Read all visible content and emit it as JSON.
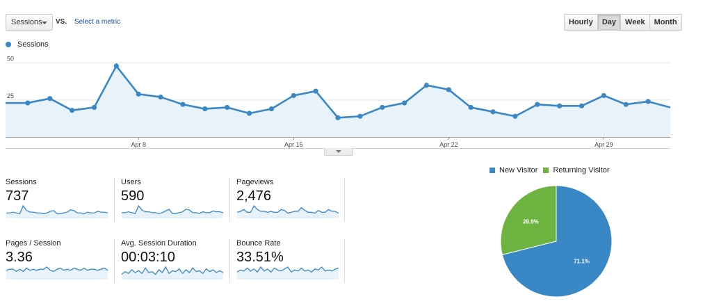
{
  "toolbar": {
    "metric_select": "Sessions",
    "vs_label": "VS.",
    "select_metric_link": "Select a metric",
    "granularity": [
      "Hourly",
      "Day",
      "Week",
      "Month"
    ],
    "active_granularity": "Day"
  },
  "chart_data": [
    {
      "type": "line",
      "title": "",
      "series": [
        {
          "name": "Sessions",
          "color": "#3a87c6",
          "values": [
            23,
            23,
            26,
            18,
            20,
            48,
            29,
            27,
            22,
            19,
            20,
            16,
            19,
            28,
            31,
            13,
            14,
            20,
            23,
            35,
            32,
            20,
            17,
            14,
            22,
            21,
            21,
            28,
            22,
            24,
            20
          ]
        }
      ],
      "x_ticks": [
        "Apr 8",
        "Apr 15",
        "Apr 22",
        "Apr 29"
      ],
      "y_ticks": [
        25,
        50
      ],
      "ylim": [
        0,
        55
      ],
      "fill": "area",
      "grid": "horizontal"
    },
    {
      "type": "pie",
      "labels": [
        "New Visitor",
        "Returning Visitor"
      ],
      "values": [
        71.1,
        28.9
      ],
      "value_labels": [
        "71.1%",
        "28.9%"
      ],
      "colors": [
        "#3a87c6",
        "#6db33f"
      ],
      "legend": "top"
    }
  ],
  "metrics": [
    {
      "label": "Sessions",
      "value": "737",
      "spark": [
        5,
        5,
        6,
        5,
        4,
        14,
        8,
        6,
        6,
        5,
        5,
        4,
        5,
        7,
        8,
        4,
        4,
        5,
        6,
        9,
        8,
        5,
        5,
        4,
        6,
        5,
        5,
        7,
        6,
        6,
        5
      ]
    },
    {
      "label": "Users",
      "value": "590",
      "spark": [
        5,
        5,
        6,
        5,
        4,
        13,
        8,
        6,
        6,
        5,
        5,
        4,
        5,
        7,
        9,
        4,
        4,
        5,
        6,
        9,
        8,
        5,
        5,
        4,
        6,
        5,
        5,
        7,
        6,
        6,
        5
      ]
    },
    {
      "label": "Pageviews",
      "value": "2,476",
      "spark": [
        5,
        6,
        8,
        5,
        5,
        12,
        8,
        6,
        6,
        5,
        6,
        5,
        5,
        8,
        7,
        4,
        5,
        6,
        6,
        10,
        7,
        5,
        5,
        4,
        7,
        5,
        5,
        8,
        6,
        6,
        4
      ]
    },
    {
      "label": "Pages / Session",
      "value": "3.36",
      "spark": [
        7,
        8,
        8,
        6,
        8,
        6,
        9,
        7,
        8,
        7,
        8,
        8,
        10,
        7,
        6,
        8,
        9,
        7,
        8,
        7,
        9,
        8,
        7,
        9,
        7,
        8,
        8,
        7,
        8,
        9,
        7
      ]
    },
    {
      "label": "Avg. Session Duration",
      "value": "00:03:10",
      "spark": [
        4,
        7,
        5,
        9,
        6,
        8,
        5,
        11,
        6,
        7,
        4,
        9,
        6,
        12,
        5,
        8,
        7,
        10,
        5,
        9,
        6,
        11,
        7,
        8,
        5,
        10,
        7,
        9,
        6,
        8,
        6
      ]
    },
    {
      "label": "Bounce Rate",
      "value": "33.51%",
      "spark": [
        6,
        8,
        7,
        10,
        7,
        9,
        6,
        11,
        7,
        9,
        6,
        10,
        8,
        7,
        9,
        11,
        6,
        8,
        7,
        10,
        7,
        8,
        6,
        9,
        8,
        11,
        7,
        8,
        7,
        9,
        10
      ]
    }
  ],
  "colors": {
    "accent": "#3a87c6",
    "returning": "#6db33f",
    "link": "#1a4fa0"
  }
}
